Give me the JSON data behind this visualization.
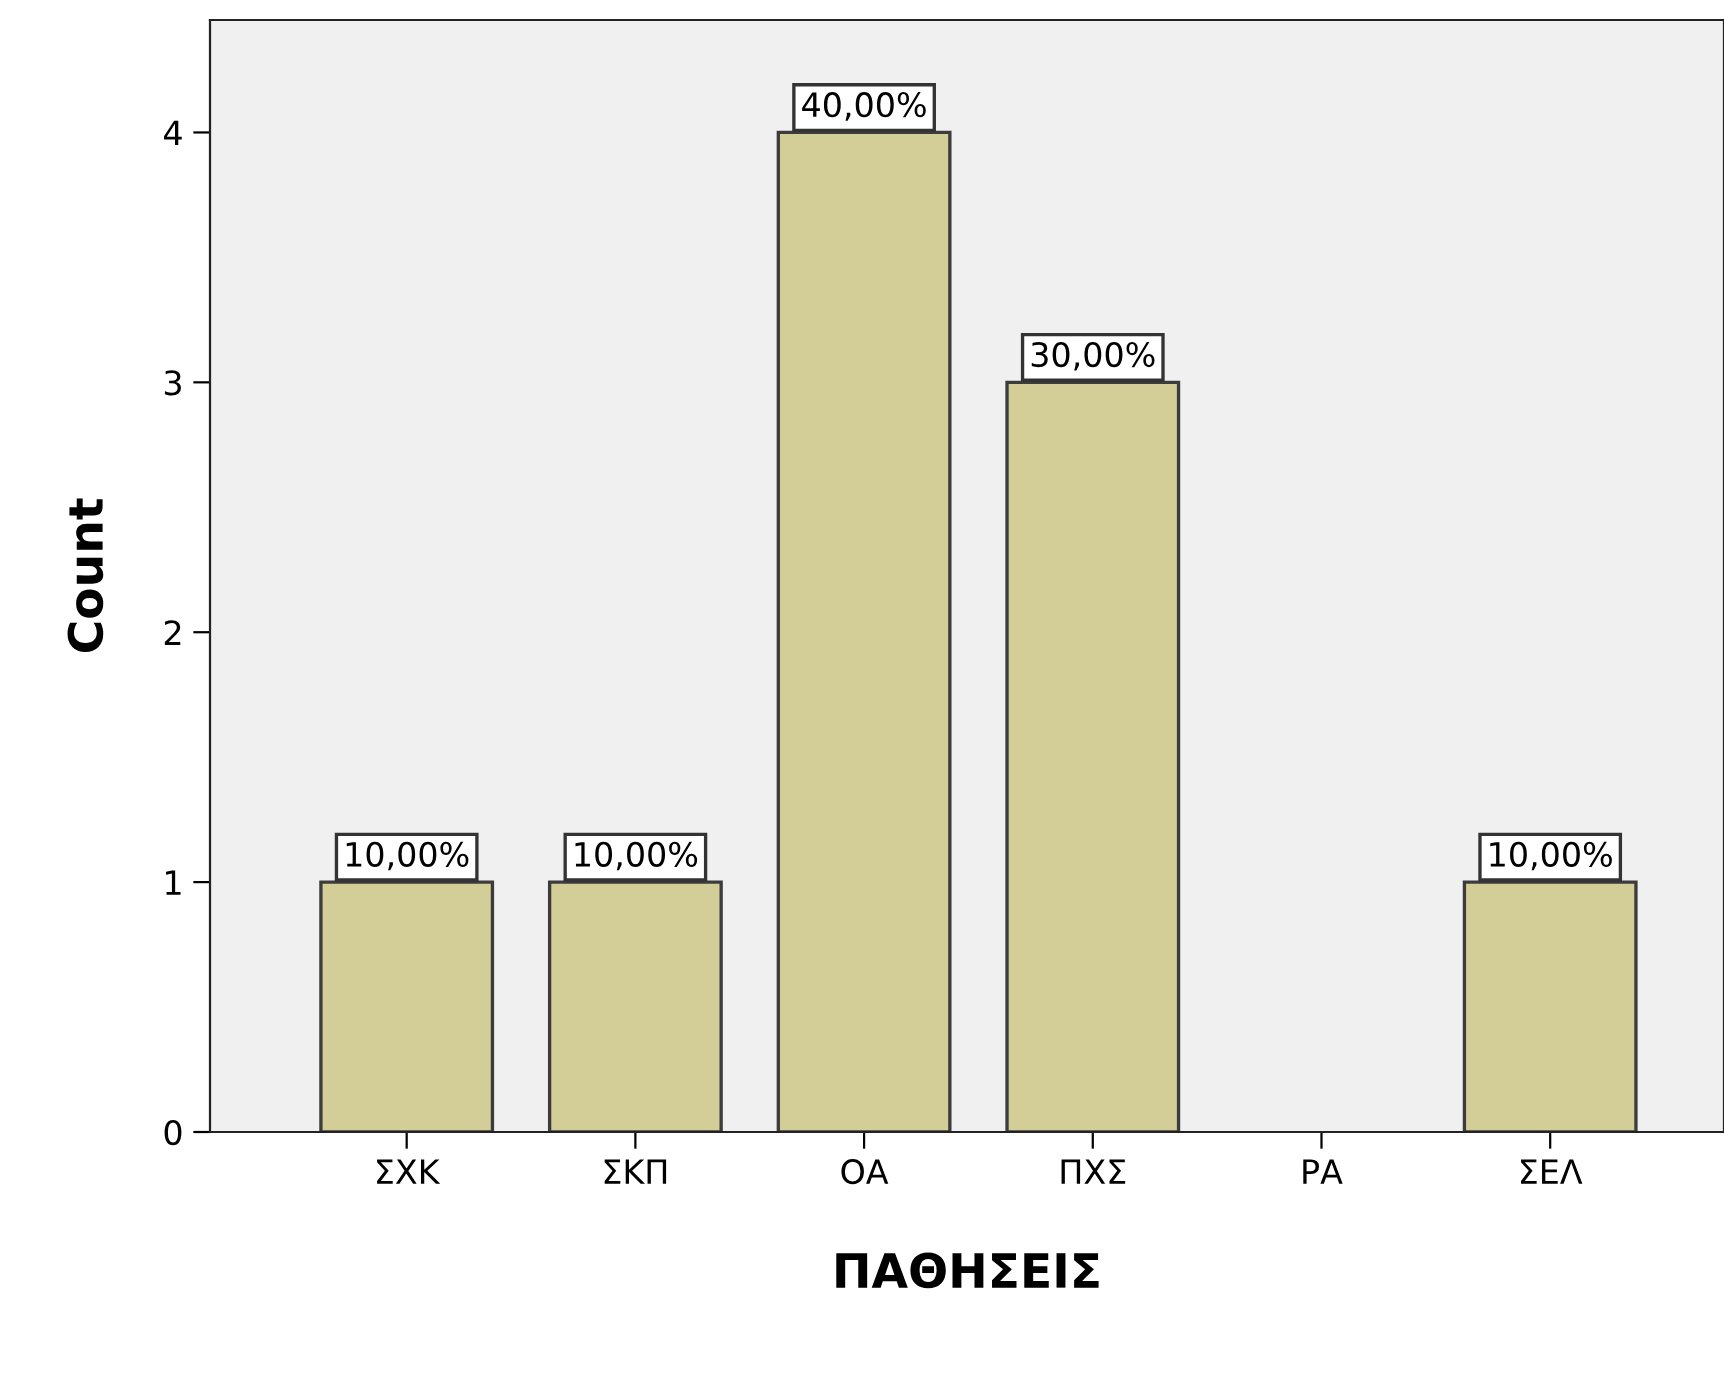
{
  "chart_data": {
    "type": "bar",
    "xlabel": "ΠΑΘΗΣΕΙΣ",
    "ylabel": "Count",
    "categories": [
      "ΣΧΚ",
      "ΣΚΠ",
      "ΟΑ",
      "ΠΧΣ",
      "ΡΑ",
      "ΣΕΛ"
    ],
    "values": [
      1,
      1,
      4,
      3,
      0,
      1
    ],
    "annotations": [
      {
        "text": "10,00%",
        "x": "ΣΧΚ",
        "y": 1
      },
      {
        "text": "10,00%",
        "x": "ΣΚΠ",
        "y": 1
      },
      {
        "text": "40,00%",
        "x": "ΟΑ",
        "y": 4
      },
      {
        "text": "30,00%",
        "x": "ΠΧΣ",
        "y": 3
      },
      {
        "text": "10,00%",
        "x": "ΣΕΛ",
        "y": 1
      }
    ],
    "color": "#d3ce98",
    "ylim": [
      0,
      4.45
    ],
    "yticks": [
      0,
      1,
      2,
      3,
      4
    ],
    "grid": false,
    "legend": false
  }
}
